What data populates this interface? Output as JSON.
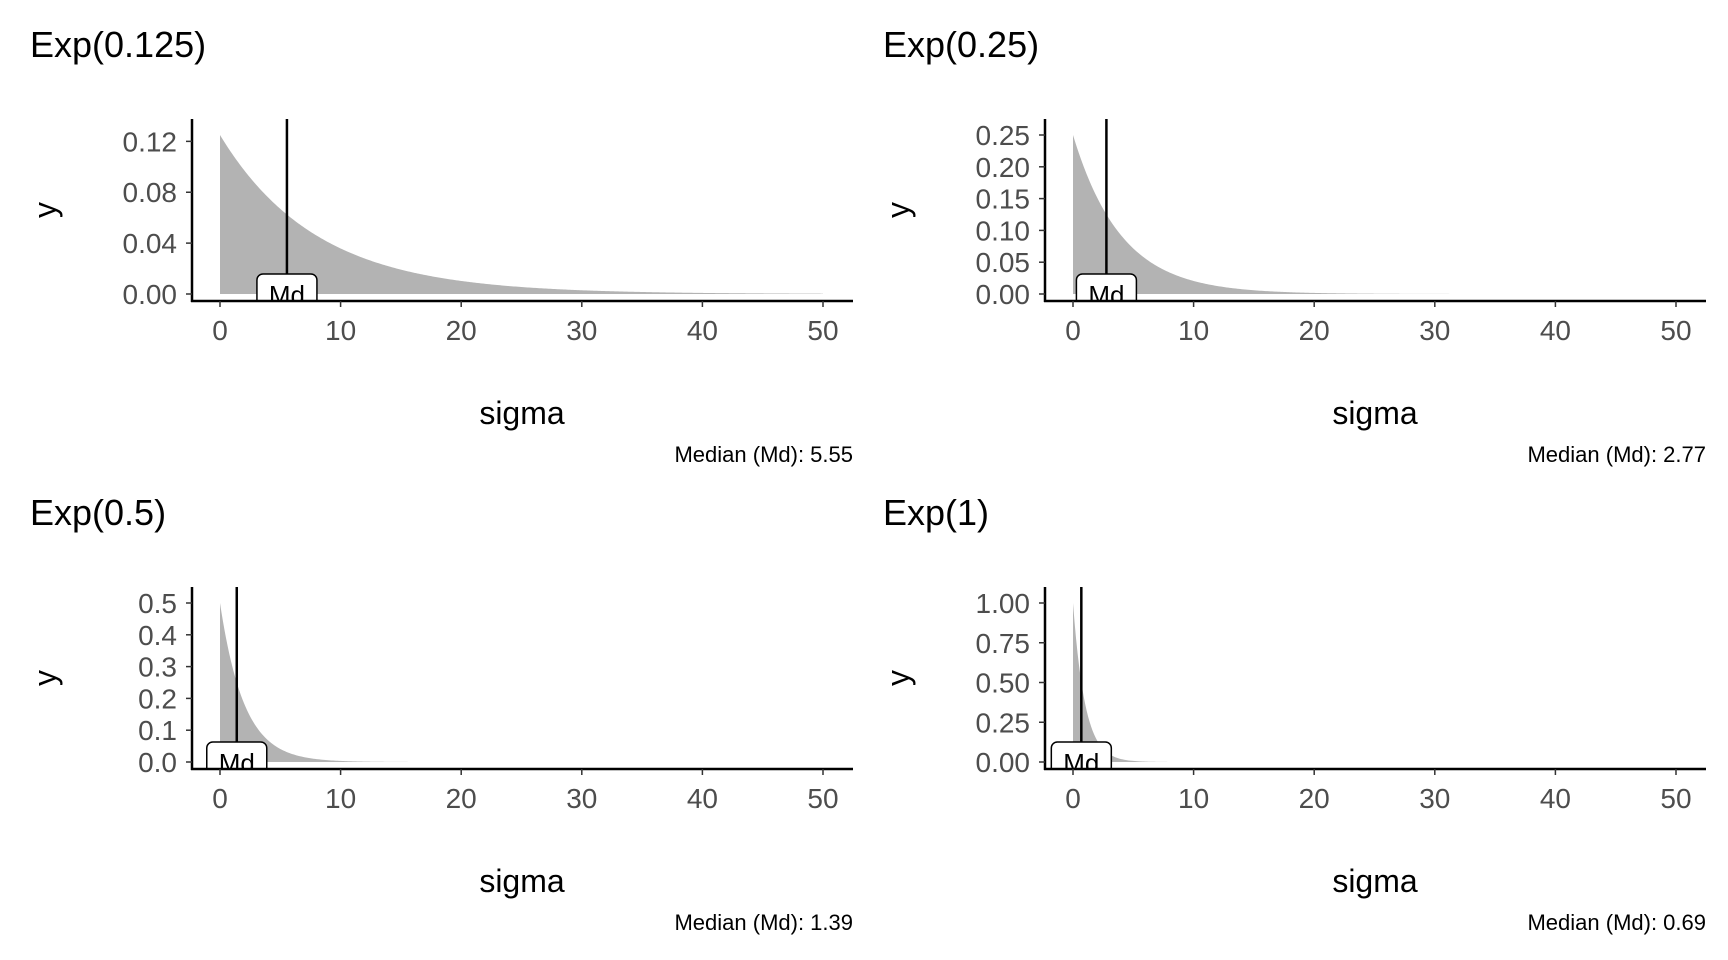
{
  "chart_data": [
    {
      "type": "area",
      "title": "Exp(0.125)",
      "rate": 0.125,
      "xlabel": "sigma",
      "ylabel": "y",
      "xlim": [
        0,
        50
      ],
      "ylim": [
        0,
        0.125
      ],
      "x_ticks": [
        0,
        10,
        20,
        30,
        40,
        50
      ],
      "x_tick_labels": [
        "0",
        "10",
        "20",
        "30",
        "40",
        "50"
      ],
      "y_ticks": [
        0,
        0.04,
        0.08,
        0.12
      ],
      "y_tick_labels": [
        "0.00",
        "0.04",
        "0.08",
        "0.12"
      ],
      "median": 5.55,
      "median_label": "Md",
      "caption": "Median (Md): 5.55",
      "fill_color": "#b3b3b3"
    },
    {
      "type": "area",
      "title": "Exp(0.25)",
      "rate": 0.25,
      "xlabel": "sigma",
      "ylabel": "y",
      "xlim": [
        0,
        50
      ],
      "ylim": [
        0,
        0.25
      ],
      "x_ticks": [
        0,
        10,
        20,
        30,
        40,
        50
      ],
      "x_tick_labels": [
        "0",
        "10",
        "20",
        "30",
        "40",
        "50"
      ],
      "y_ticks": [
        0,
        0.05,
        0.1,
        0.15,
        0.2,
        0.25
      ],
      "y_tick_labels": [
        "0.00",
        "0.05",
        "0.10",
        "0.15",
        "0.20",
        "0.25"
      ],
      "median": 2.77,
      "median_label": "Md",
      "caption": "Median (Md): 2.77",
      "fill_color": "#b3b3b3"
    },
    {
      "type": "area",
      "title": "Exp(0.5)",
      "rate": 0.5,
      "xlabel": "sigma",
      "ylabel": "y",
      "xlim": [
        0,
        50
      ],
      "ylim": [
        0,
        0.5
      ],
      "x_ticks": [
        0,
        10,
        20,
        30,
        40,
        50
      ],
      "x_tick_labels": [
        "0",
        "10",
        "20",
        "30",
        "40",
        "50"
      ],
      "y_ticks": [
        0,
        0.1,
        0.2,
        0.3,
        0.4,
        0.5
      ],
      "y_tick_labels": [
        "0.0",
        "0.1",
        "0.2",
        "0.3",
        "0.4",
        "0.5"
      ],
      "median": 1.39,
      "median_label": "Md",
      "caption": "Median (Md): 1.39",
      "fill_color": "#b3b3b3"
    },
    {
      "type": "area",
      "title": "Exp(1)",
      "rate": 1,
      "xlabel": "sigma",
      "ylabel": "y",
      "xlim": [
        0,
        50
      ],
      "ylim": [
        0,
        1
      ],
      "x_ticks": [
        0,
        10,
        20,
        30,
        40,
        50
      ],
      "x_tick_labels": [
        "0",
        "10",
        "20",
        "30",
        "40",
        "50"
      ],
      "y_ticks": [
        0,
        0.25,
        0.5,
        0.75,
        1
      ],
      "y_tick_labels": [
        "0.00",
        "0.25",
        "0.50",
        "0.75",
        "1.00"
      ],
      "median": 0.69,
      "median_label": "Md",
      "caption": "Median (Md): 0.69",
      "fill_color": "#b3b3b3"
    }
  ]
}
